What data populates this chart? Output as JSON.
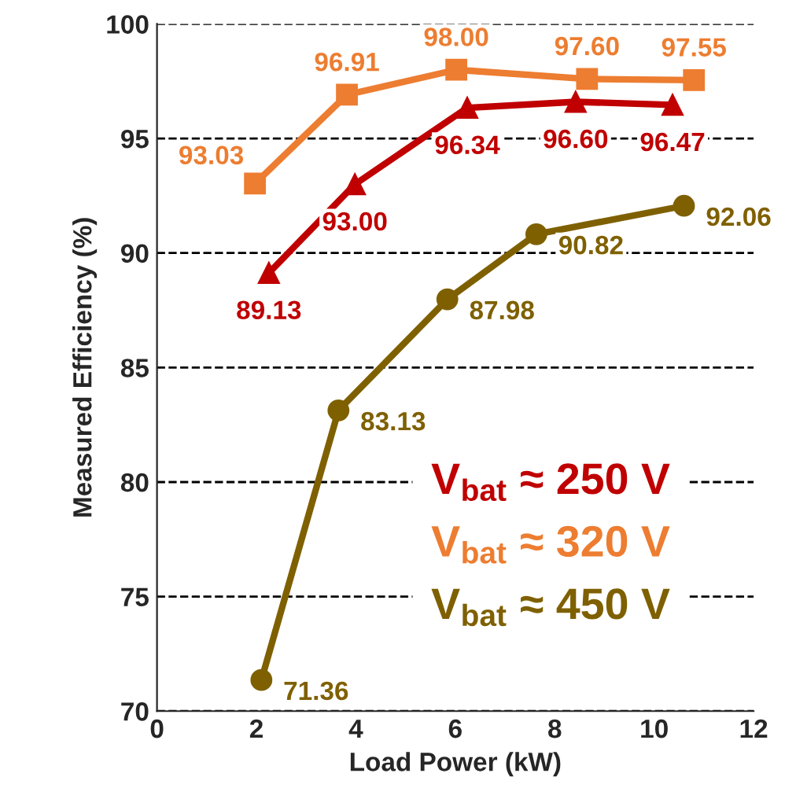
{
  "chart_data": {
    "type": "line",
    "xlabel": "Load Power (kW)",
    "ylabel": "Measured Efficiency (%)",
    "xlim": [
      0,
      12
    ],
    "xticks": [
      0,
      2,
      4,
      6,
      8,
      10,
      12
    ],
    "ylim": [
      70,
      100
    ],
    "yticks": [
      70,
      75,
      80,
      85,
      90,
      95,
      100
    ],
    "grid": "y",
    "line_style": "solid",
    "legend": "bottom right",
    "series": [
      {
        "name": "V$_{bat}$ ≈ 250 V",
        "color": "#c00000",
        "marker": "triangle",
        "x": [
          2.25,
          3.98,
          6.24,
          8.42,
          10.37
        ],
        "values": [
          89.13,
          93.0,
          96.34,
          96.6,
          96.47
        ],
        "value_labels": [
          "89.13",
          "93.00",
          "96.34",
          "96.60",
          "96.47"
        ]
      },
      {
        "name": "V$_{bat}$ ≈ 320 V",
        "color": "#ed7d31",
        "marker": "square",
        "x": [
          1.97,
          3.82,
          6.02,
          8.65,
          10.8
        ],
        "values": [
          93.03,
          96.91,
          98.0,
          97.6,
          97.55
        ],
        "value_labels": [
          "93.03",
          "96.91",
          "98.00",
          "97.60",
          "97.55"
        ]
      },
      {
        "name": "V$_{bat}$ ≈ 450 V",
        "color": "#7f6000",
        "marker": "circle",
        "x": [
          2.1,
          3.65,
          5.84,
          7.63,
          10.6
        ],
        "values": [
          71.36,
          83.13,
          87.98,
          90.82,
          92.06
        ],
        "value_labels": [
          "71.36",
          "83.13",
          "87.98",
          "90.82",
          "92.06"
        ]
      }
    ]
  }
}
